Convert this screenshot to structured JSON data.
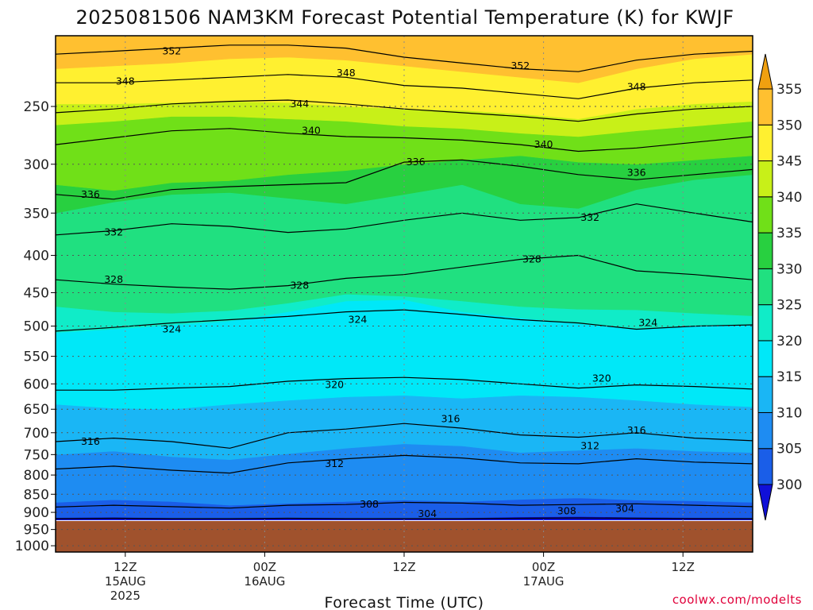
{
  "chart_data": {
    "type": "contour",
    "title": "2025081506 NAM3KM Forecast Potential Temperature (K) for KWJF",
    "xlabel": "Forecast Time (UTC)",
    "ylabel": "",
    "credit": "coolwx.com/modelts",
    "x_ticks": [
      {
        "hour": 6,
        "label": "12Z",
        "sub1": "15AUG",
        "sub2": "2025"
      },
      {
        "hour": 18,
        "label": "00Z",
        "sub1": "16AUG",
        "sub2": ""
      },
      {
        "hour": 30,
        "label": "12Z",
        "sub1": "",
        "sub2": ""
      },
      {
        "hour": 42,
        "label": "00Z",
        "sub1": "17AUG",
        "sub2": ""
      },
      {
        "hour": 54,
        "label": "12Z",
        "sub1": "",
        "sub2": ""
      }
    ],
    "xlim_hours": [
      0,
      60
    ],
    "y_scale": "log pressure (hPa)",
    "y_ticks": [
      250,
      300,
      350,
      400,
      450,
      500,
      550,
      600,
      650,
      700,
      750,
      800,
      850,
      900,
      950,
      1000
    ],
    "ylim_hPa": [
      200,
      1020
    ],
    "surface_pressure_hPa": 925,
    "grid": true,
    "colorbar": {
      "levels": [
        300,
        305,
        310,
        315,
        320,
        325,
        330,
        335,
        340,
        345,
        350,
        355
      ],
      "colors": [
        "#1010d8",
        "#1a5ee8",
        "#1e8cf2",
        "#1ab6f5",
        "#00e8f8",
        "#10ecc8",
        "#20e080",
        "#28d040",
        "#70e018",
        "#c8f018",
        "#fff030",
        "#ffc030",
        "#f0a010"
      ]
    },
    "shading_bands": [
      {
        "min": 300,
        "max": 305,
        "color": "#1010d8",
        "p_start": [
          915,
          914,
          916,
          917,
          915,
          916,
          917,
          916,
          913,
          912,
          914,
          915,
          916
        ],
        "p_end": [
          922,
          922,
          922,
          922,
          922,
          922,
          922,
          922,
          922,
          922,
          922,
          922,
          922
        ]
      },
      {
        "min": 305,
        "max": 310,
        "color": "#1a5ee8",
        "p_start": [
          872,
          865,
          870,
          880,
          875,
          870,
          866,
          870,
          864,
          860,
          866,
          868,
          872
        ],
        "p_end": [
          915,
          914,
          916,
          917,
          915,
          916,
          917,
          916,
          913,
          912,
          914,
          915,
          916
        ]
      },
      {
        "min": 310,
        "max": 315,
        "color": "#1e8cf2",
        "p_start": [
          750,
          742,
          755,
          762,
          748,
          735,
          725,
          730,
          745,
          740,
          735,
          742,
          745
        ],
        "p_end": [
          872,
          865,
          870,
          880,
          875,
          870,
          866,
          870,
          864,
          860,
          866,
          868,
          872
        ]
      },
      {
        "min": 315,
        "max": 320,
        "color": "#1ab6f5",
        "p_start": [
          640,
          648,
          650,
          640,
          632,
          625,
          622,
          628,
          622,
          625,
          632,
          640,
          645
        ],
        "p_end": [
          750,
          742,
          755,
          762,
          748,
          735,
          725,
          730,
          745,
          740,
          735,
          742,
          745
        ]
      },
      {
        "min": 320,
        "max": 325,
        "color": "#00e8f8",
        "p_start": [
          510,
          505,
          498,
          492,
          478,
          462,
          460,
          478,
          487,
          496,
          505,
          500,
          498
        ],
        "p_end": [
          640,
          648,
          650,
          640,
          632,
          625,
          622,
          628,
          622,
          625,
          632,
          640,
          645
        ]
      },
      {
        "min": 325,
        "max": 330,
        "color": "#10ecc8",
        "p_start": [
          470,
          478,
          480,
          476,
          465,
          452,
          455,
          462,
          470,
          474,
          475,
          480,
          484
        ],
        "p_end": [
          510,
          505,
          498,
          492,
          478,
          462,
          460,
          478,
          487,
          496,
          505,
          500,
          498
        ]
      },
      {
        "min": 330,
        "max": 335,
        "color": "#20e080",
        "p_start": [
          350,
          338,
          330,
          328,
          334,
          340,
          330,
          320,
          340,
          345,
          325,
          315,
          310
        ],
        "p_end": [
          470,
          478,
          480,
          476,
          465,
          452,
          455,
          462,
          470,
          474,
          475,
          480,
          484
        ]
      },
      {
        "min": 335,
        "max": 340,
        "color": "#28d040",
        "p_start": [
          320,
          326,
          318,
          316,
          310,
          306,
          300,
          296,
          292,
          298,
          300,
          296,
          292
        ],
        "p_end": [
          350,
          338,
          330,
          328,
          334,
          340,
          330,
          320,
          340,
          345,
          325,
          315,
          310
        ]
      },
      {
        "min": 340,
        "max": 345,
        "color": "#70e018",
        "p_start": [
          265,
          262,
          258,
          258,
          260,
          262,
          266,
          268,
          272,
          275,
          270,
          266,
          262
        ],
        "p_end": [
          320,
          326,
          318,
          316,
          310,
          306,
          300,
          296,
          292,
          298,
          300,
          296,
          292
        ]
      },
      {
        "min": 345,
        "max": 350,
        "color": "#c8f018",
        "p_start": [
          248,
          248,
          247,
          246,
          247,
          250,
          252,
          253,
          256,
          260,
          252,
          248,
          246
        ],
        "p_end": [
          265,
          262,
          258,
          258,
          260,
          262,
          266,
          268,
          272,
          275,
          270,
          266,
          262
        ]
      },
      {
        "min": 350,
        "max": 355,
        "color": "#fff030",
        "p_start": [
          222,
          220,
          218,
          215,
          214,
          216,
          220,
          224,
          228,
          232,
          222,
          215,
          212
        ],
        "p_end": [
          248,
          248,
          247,
          246,
          247,
          250,
          252,
          253,
          256,
          260,
          252,
          248,
          246
        ]
      },
      {
        "min": 355,
        "max": 360,
        "color": "#ffc030",
        "p_start": [
          200,
          200,
          200,
          200,
          200,
          200,
          200,
          200,
          200,
          200,
          200,
          200,
          200
        ],
        "p_end": [
          222,
          220,
          218,
          215,
          214,
          216,
          220,
          224,
          228,
          232,
          222,
          215,
          212
        ]
      }
    ],
    "contours": [
      {
        "value": 304,
        "p": [
          918,
          917,
          918,
          918,
          917,
          918,
          918,
          918,
          917,
          916,
          917,
          918,
          918
        ]
      },
      {
        "value": 308,
        "p": [
          885,
          880,
          884,
          888,
          880,
          878,
          872,
          874,
          880,
          878,
          876,
          880,
          884
        ]
      },
      {
        "value": 312,
        "p": [
          785,
          778,
          788,
          795,
          770,
          760,
          752,
          758,
          770,
          772,
          760,
          768,
          772
        ]
      },
      {
        "value": 316,
        "p": [
          720,
          712,
          720,
          735,
          700,
          692,
          680,
          690,
          705,
          710,
          700,
          712,
          718
        ]
      },
      {
        "value": 320,
        "p": [
          612,
          612,
          608,
          605,
          595,
          590,
          588,
          592,
          600,
          608,
          602,
          605,
          610
        ]
      },
      {
        "value": 324,
        "p": [
          508,
          502,
          495,
          490,
          485,
          478,
          475,
          482,
          490,
          495,
          505,
          500,
          498
        ]
      },
      {
        "value": 328,
        "p": [
          432,
          438,
          442,
          445,
          440,
          430,
          425,
          415,
          405,
          400,
          420,
          425,
          432
        ]
      },
      {
        "value": 332,
        "p": [
          375,
          370,
          362,
          365,
          372,
          368,
          358,
          350,
          358,
          355,
          340,
          350,
          360
        ]
      },
      {
        "value": 336,
        "p": [
          330,
          335,
          325,
          322,
          320,
          318,
          298,
          296,
          302,
          310,
          315,
          310,
          305
        ]
      },
      {
        "value": 340,
        "p": [
          282,
          276,
          270,
          268,
          272,
          275,
          276,
          278,
          282,
          288,
          285,
          280,
          275
        ]
      },
      {
        "value": 344,
        "p": [
          255,
          252,
          248,
          246,
          245,
          248,
          252,
          255,
          258,
          262,
          256,
          252,
          250
        ]
      },
      {
        "value": 348,
        "p": [
          232,
          232,
          230,
          228,
          226,
          228,
          234,
          236,
          240,
          244,
          236,
          232,
          230
        ]
      },
      {
        "value": 352,
        "p": [
          212,
          210,
          208,
          206,
          206,
          208,
          214,
          218,
          222,
          224,
          216,
          212,
          210
        ]
      }
    ],
    "contour_labels": [
      {
        "text": "352",
        "hour": 10,
        "p": 210
      },
      {
        "text": "348",
        "hour": 6,
        "p": 231
      },
      {
        "text": "348",
        "hour": 25,
        "p": 225
      },
      {
        "text": "352",
        "hour": 40,
        "p": 220
      },
      {
        "text": "348",
        "hour": 50,
        "p": 235
      },
      {
        "text": "344",
        "hour": 21,
        "p": 248
      },
      {
        "text": "340",
        "hour": 22,
        "p": 270
      },
      {
        "text": "340",
        "hour": 42,
        "p": 282
      },
      {
        "text": "336",
        "hour": 31,
        "p": 298
      },
      {
        "text": "336",
        "hour": 50,
        "p": 308
      },
      {
        "text": "336",
        "hour": 3,
        "p": 330
      },
      {
        "text": "332",
        "hour": 5,
        "p": 372
      },
      {
        "text": "332",
        "hour": 46,
        "p": 355
      },
      {
        "text": "328",
        "hour": 5,
        "p": 432
      },
      {
        "text": "328",
        "hour": 21,
        "p": 440
      },
      {
        "text": "328",
        "hour": 41,
        "p": 405
      },
      {
        "text": "324",
        "hour": 10,
        "p": 505
      },
      {
        "text": "324",
        "hour": 26,
        "p": 490
      },
      {
        "text": "324",
        "hour": 51,
        "p": 495
      },
      {
        "text": "320",
        "hour": 24,
        "p": 602
      },
      {
        "text": "320",
        "hour": 47,
        "p": 590
      },
      {
        "text": "316",
        "hour": 3,
        "p": 720
      },
      {
        "text": "316",
        "hour": 34,
        "p": 670
      },
      {
        "text": "316",
        "hour": 50,
        "p": 695
      },
      {
        "text": "312",
        "hour": 24,
        "p": 772
      },
      {
        "text": "312",
        "hour": 46,
        "p": 730
      },
      {
        "text": "308",
        "hour": 27,
        "p": 878
      },
      {
        "text": "308",
        "hour": 44,
        "p": 897
      },
      {
        "text": "304",
        "hour": 32,
        "p": 904
      },
      {
        "text": "304",
        "hour": 49,
        "p": 890
      }
    ],
    "ground_color": "#a0522d"
  }
}
